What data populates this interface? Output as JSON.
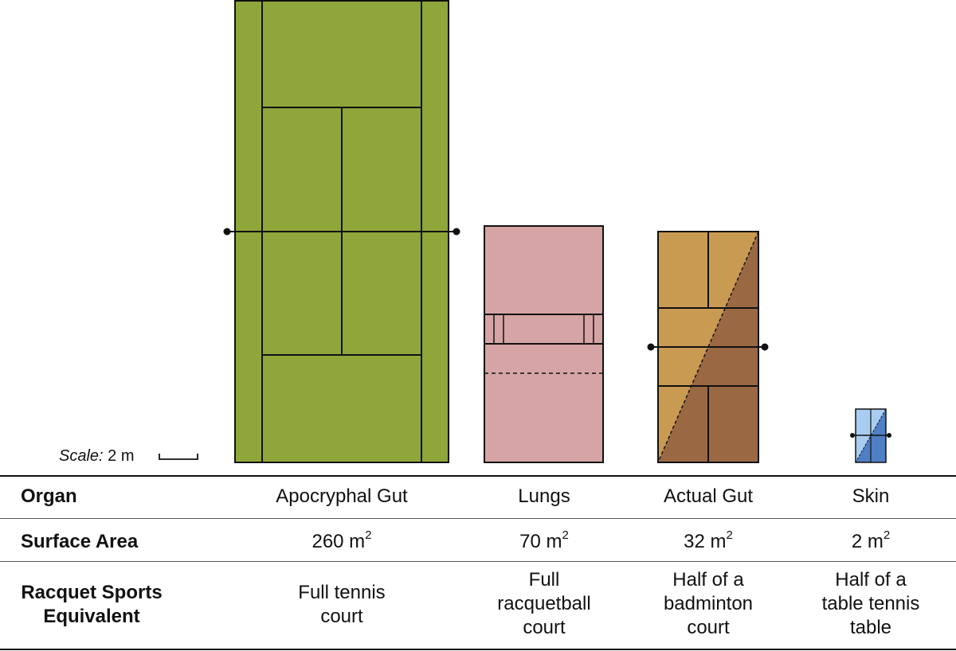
{
  "scale": {
    "label": "Scale:",
    "value": "2 m"
  },
  "headers": {
    "organ": "Organ",
    "surface_area": "Surface Area",
    "racquet_line1": "Racquet Sports",
    "racquet_line2": "Equivalent"
  },
  "organs": [
    {
      "name": "Apocryphal Gut",
      "area_num": "260 m",
      "area_sup": "2",
      "equiv": [
        "Full tennis",
        "court"
      ],
      "color": "#8fa63a"
    },
    {
      "name": "Lungs",
      "area_num": "70 m",
      "area_sup": "2",
      "equiv": [
        "Full",
        "racquetball",
        "court"
      ],
      "color": "#d6a4a4"
    },
    {
      "name": "Actual Gut",
      "area_num": "32 m",
      "area_sup": "2",
      "equiv": [
        "Half of a",
        "badminton",
        "court"
      ],
      "color": "#c99a52",
      "color2": "#9a6944"
    },
    {
      "name": "Skin",
      "area_num": "2 m",
      "area_sup": "2",
      "equiv": [
        "Half of a",
        "table tennis",
        "table"
      ],
      "color": "#a9cdf0",
      "color2": "#4f7fc4"
    }
  ]
}
